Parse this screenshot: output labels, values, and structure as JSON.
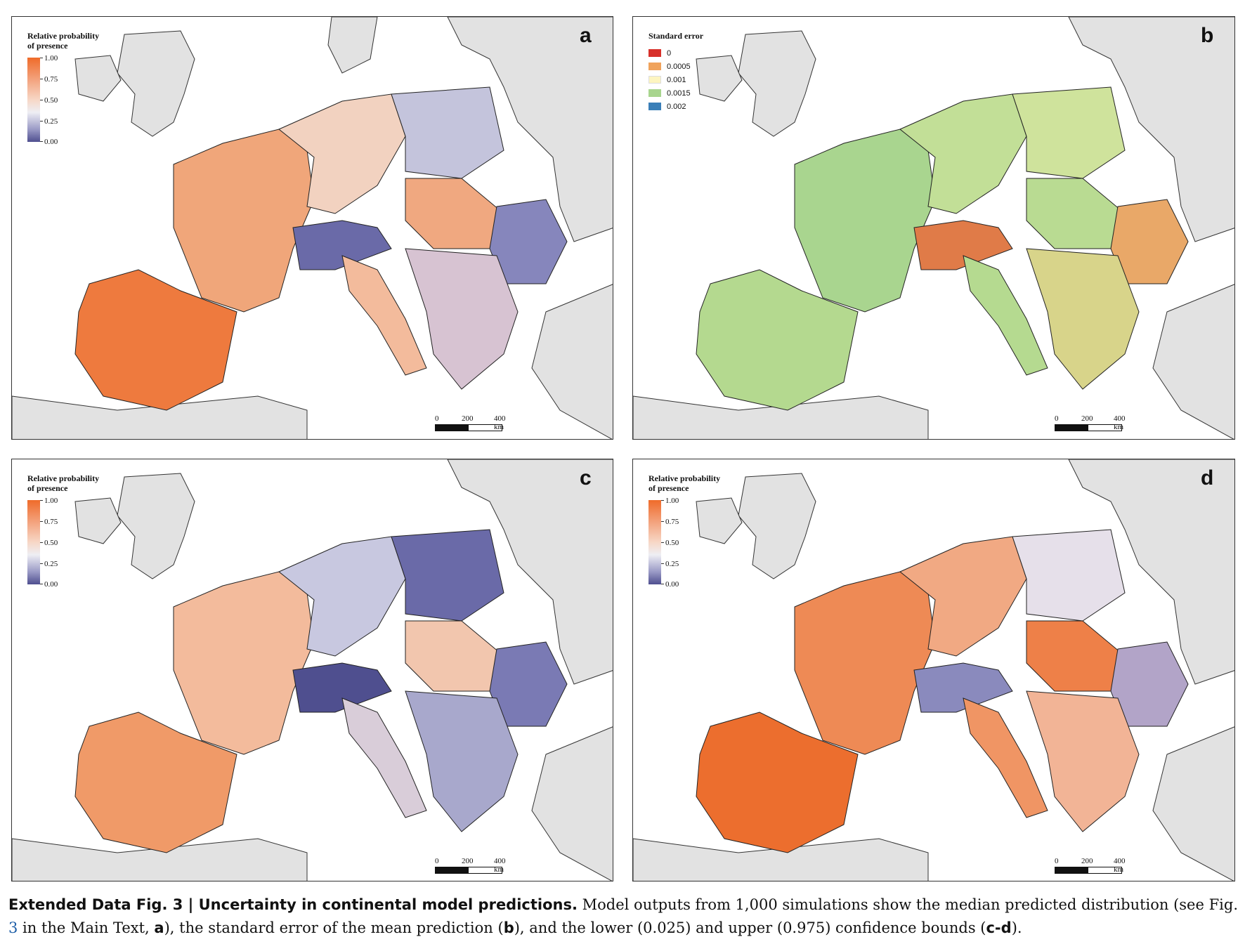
{
  "panels": {
    "a": {
      "letter": "a",
      "legend_title_1": "Relative probability",
      "legend_title_2": "of presence",
      "ticks": [
        "1.00",
        "0.75",
        "0.50",
        "0.25",
        "0.00"
      ],
      "scale": {
        "l0": "0",
        "l1": "200",
        "l2": "400 km"
      }
    },
    "b": {
      "letter": "b",
      "legend_title": "Standard error",
      "classes": [
        {
          "label": "0",
          "color": "#d7302a"
        },
        {
          "label": "0.0005",
          "color": "#f0a35c"
        },
        {
          "label": "0.001",
          "color": "#fdf5c0"
        },
        {
          "label": "0.0015",
          "color": "#a8d58e"
        },
        {
          "label": "0.002",
          "color": "#3a7fb8"
        }
      ],
      "scale": {
        "l0": "0",
        "l1": "200",
        "l2": "400 km"
      }
    },
    "c": {
      "letter": "c",
      "legend_title_1": "Relative probability",
      "legend_title_2": "of presence",
      "ticks": [
        "1.00",
        "0.75",
        "0.50",
        "0.25",
        "0.00"
      ],
      "scale": {
        "l0": "0",
        "l1": "200",
        "l2": "400 km"
      }
    },
    "d": {
      "letter": "d",
      "legend_title_1": "Relative probability",
      "legend_title_2": "of presence",
      "ticks": [
        "1.00",
        "0.75",
        "0.50",
        "0.25",
        "0.00"
      ],
      "scale": {
        "l0": "0",
        "l1": "200",
        "l2": "400 km"
      }
    }
  },
  "colors": {
    "sea": "#ffffff",
    "outside_land": "#e2e2e2",
    "high": "#ef6b2a",
    "mid": "#f3c3a8",
    "low": "#5a5a9a",
    "se_green": "#a9d58f",
    "se_red": "#d7302a"
  },
  "caption": {
    "bold": "Extended Data Fig. 3 | Uncertainty in continental model predictions.",
    "text1": " Model outputs from 1,000 simulations show the median predicted distribution (see Fig. ",
    "figref": "3",
    "text2": " in the Main Text, ",
    "a": "a",
    "text3": "), the standard error of the mean prediction (",
    "b": "b",
    "text4": "), and the lower (0.025) and upper (0.975) confidence bounds (",
    "cd": "c-d",
    "text5": ")."
  }
}
